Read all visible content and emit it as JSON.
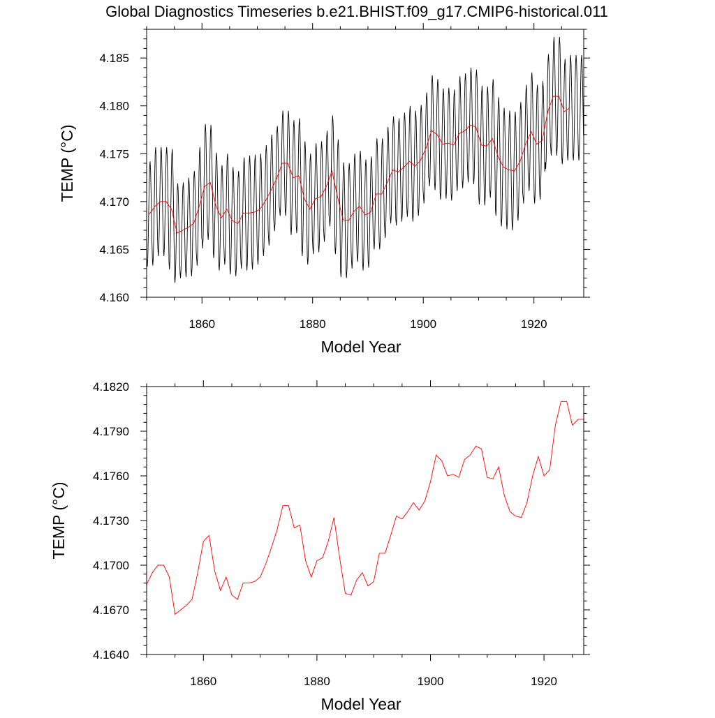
{
  "title": "Global Diagnostics Timeseries b.e21.BHIST.f09_g17.CMIP6-historical.011",
  "colors": {
    "monthly": "#000000",
    "annual": "#ff0000",
    "frame": "#000000"
  },
  "chart_data": [
    {
      "type": "line",
      "xlabel": "Model Year",
      "ylabel": "TEMP (°C)",
      "xlim": [
        1850,
        1929
      ],
      "ylim": [
        4.16,
        4.188
      ],
      "xticks": [
        1860,
        1880,
        1900,
        1920
      ],
      "xtick_labels": [
        "1860",
        "1880",
        "1900",
        "1920"
      ],
      "yticks": [
        4.16,
        4.165,
        4.17,
        4.175,
        4.18,
        4.185
      ],
      "ytick_labels": [
        "4.160",
        "4.165",
        "4.170",
        "4.175",
        "4.180",
        "4.185"
      ],
      "series": [
        {
          "color": "#000000",
          "annual_oscillation": true,
          "x_start": 1850,
          "x_end": 1929,
          "mean": [
            4.1687,
            4.1695,
            4.17,
            4.17,
            4.1692,
            4.1667,
            4.167,
            4.1673,
            4.1677,
            4.1695,
            4.1716,
            4.172,
            4.1696,
            4.1683,
            4.1692,
            4.168,
            4.1677,
            4.1688,
            4.1688,
            4.1689,
            4.1692,
            4.1701,
            4.1712,
            4.1724,
            4.174,
            4.174,
            4.1725,
            4.1727,
            4.1703,
            4.1692,
            4.1703,
            4.1705,
            4.1716,
            4.1732,
            4.1705,
            4.1681,
            4.168,
            4.169,
            4.1695,
            4.1686,
            4.1689,
            4.1708,
            4.1708,
            4.172,
            4.1733,
            4.1731,
            4.1736,
            4.1742,
            4.1737,
            4.1743,
            4.1756,
            4.1774,
            4.177,
            4.176,
            4.1761,
            4.1759,
            4.1771,
            4.1774,
            4.178,
            4.1778,
            4.1759,
            4.1758,
            4.1766,
            4.1747,
            4.1736,
            4.1733,
            4.1732,
            4.1742,
            4.176,
            4.1773,
            4.176,
            4.1764,
            4.1794,
            4.181,
            4.181,
            4.1794,
            4.1798,
            4.1798,
            4.1798
          ],
          "amplitude": [
            0.0055,
            0.0062,
            0.0057,
            0.0057,
            0.0063,
            0.0052,
            0.005,
            0.0052,
            0.0055,
            0.0062,
            0.0065,
            0.006,
            0.0055,
            0.0055,
            0.0058,
            0.0056,
            0.0055,
            0.0058,
            0.006,
            0.006,
            0.0058,
            0.0058,
            0.0058,
            0.0055,
            0.0055,
            0.0055,
            0.006,
            0.006,
            0.006,
            0.0058,
            0.0058,
            0.0058,
            0.0058,
            0.0058,
            0.006,
            0.006,
            0.006,
            0.006,
            0.0058,
            0.0058,
            0.0058,
            0.0058,
            0.0058,
            0.0058,
            0.0056,
            0.0056,
            0.0057,
            0.0058,
            0.0058,
            0.0058,
            0.0058,
            0.0058,
            0.0058,
            0.0058,
            0.0058,
            0.0058,
            0.006,
            0.006,
            0.006,
            0.006,
            0.0062,
            0.0062,
            0.0062,
            0.0062,
            0.0062,
            0.0062,
            0.0062,
            0.0062,
            0.0062,
            0.0062,
            0.0062,
            0.0062,
            0.006,
            0.0062,
            0.0062,
            0.0055,
            0.0055,
            0.0055,
            0.0055
          ]
        },
        {
          "color": "#ff0000",
          "x": [
            1850.5,
            1851.5,
            1852.5,
            1853.5,
            1854.5,
            1855.5,
            1856.5,
            1857.5,
            1858.5,
            1859.5,
            1860.5,
            1861.5,
            1862.5,
            1863.5,
            1864.5,
            1865.5,
            1866.5,
            1867.5,
            1868.5,
            1869.5,
            1870.5,
            1871.5,
            1872.5,
            1873.5,
            1874.5,
            1875.5,
            1876.5,
            1877.5,
            1878.5,
            1879.5,
            1880.5,
            1881.5,
            1882.5,
            1883.5,
            1884.5,
            1885.5,
            1886.5,
            1887.5,
            1888.5,
            1889.5,
            1890.5,
            1891.5,
            1892.5,
            1893.5,
            1894.5,
            1895.5,
            1896.5,
            1897.5,
            1898.5,
            1899.5,
            1900.5,
            1901.5,
            1902.5,
            1903.5,
            1904.5,
            1905.5,
            1906.5,
            1907.5,
            1908.5,
            1909.5,
            1910.5,
            1911.5,
            1912.5,
            1913.5,
            1914.5,
            1915.5,
            1916.5,
            1917.5,
            1918.5,
            1919.5,
            1920.5,
            1921.5,
            1922.5,
            1923.5,
            1924.5,
            1925.5,
            1926.5
          ],
          "y": [
            4.1687,
            4.1695,
            4.17,
            4.17,
            4.1692,
            4.1667,
            4.167,
            4.1673,
            4.1677,
            4.1695,
            4.1716,
            4.172,
            4.1696,
            4.1683,
            4.1692,
            4.168,
            4.1677,
            4.1688,
            4.1688,
            4.1689,
            4.1692,
            4.1701,
            4.1712,
            4.1724,
            4.174,
            4.174,
            4.1725,
            4.1727,
            4.1703,
            4.1692,
            4.1703,
            4.1705,
            4.1716,
            4.1732,
            4.1705,
            4.1681,
            4.168,
            4.169,
            4.1695,
            4.1686,
            4.1689,
            4.1708,
            4.1708,
            4.172,
            4.1733,
            4.1731,
            4.1736,
            4.1742,
            4.1737,
            4.1743,
            4.1756,
            4.1774,
            4.177,
            4.176,
            4.1761,
            4.1759,
            4.1771,
            4.1774,
            4.178,
            4.1778,
            4.1759,
            4.1758,
            4.1766,
            4.1747,
            4.1736,
            4.1733,
            4.1732,
            4.1742,
            4.176,
            4.1773,
            4.176,
            4.1764,
            4.1794,
            4.181,
            4.181,
            4.1794,
            4.1798
          ]
        }
      ]
    },
    {
      "type": "line",
      "xlabel": "Model Year",
      "ylabel": "TEMP (°C)",
      "xlim": [
        1850,
        1927
      ],
      "ylim": [
        4.164,
        4.182
      ],
      "xticks": [
        1860,
        1880,
        1900,
        1920
      ],
      "xtick_labels": [
        "1860",
        "1880",
        "1900",
        "1920"
      ],
      "yticks": [
        4.164,
        4.167,
        4.17,
        4.173,
        4.176,
        4.179,
        4.182
      ],
      "ytick_labels": [
        "4.1640",
        "4.1670",
        "4.1700",
        "4.1730",
        "4.1760",
        "4.1790",
        "4.1820"
      ],
      "series": [
        {
          "color": "#ff0000",
          "x": [
            1850,
            1851,
            1852,
            1853,
            1854,
            1855,
            1856,
            1857,
            1858,
            1859,
            1860,
            1861,
            1862,
            1863,
            1864,
            1865,
            1866,
            1867,
            1868,
            1869,
            1870,
            1871,
            1872,
            1873,
            1874,
            1875,
            1876,
            1877,
            1878,
            1879,
            1880,
            1881,
            1882,
            1883,
            1884,
            1885,
            1886,
            1887,
            1888,
            1889,
            1890,
            1891,
            1892,
            1893,
            1894,
            1895,
            1896,
            1897,
            1898,
            1899,
            1900,
            1901,
            1902,
            1903,
            1904,
            1905,
            1906,
            1907,
            1908,
            1909,
            1910,
            1911,
            1912,
            1913,
            1914,
            1915,
            1916,
            1917,
            1918,
            1919,
            1920,
            1921,
            1922,
            1923,
            1924,
            1925,
            1926,
            1927
          ],
          "y": [
            4.1687,
            4.1695,
            4.17,
            4.17,
            4.1692,
            4.1667,
            4.167,
            4.1673,
            4.1677,
            4.1695,
            4.1716,
            4.172,
            4.1696,
            4.1683,
            4.1692,
            4.168,
            4.1677,
            4.1688,
            4.1688,
            4.1689,
            4.1692,
            4.1701,
            4.1712,
            4.1724,
            4.174,
            4.174,
            4.1725,
            4.1727,
            4.1703,
            4.1692,
            4.1703,
            4.1705,
            4.1716,
            4.1732,
            4.1705,
            4.1681,
            4.168,
            4.169,
            4.1695,
            4.1686,
            4.1689,
            4.1708,
            4.1708,
            4.172,
            4.1733,
            4.1731,
            4.1736,
            4.1742,
            4.1737,
            4.1743,
            4.1756,
            4.1774,
            4.177,
            4.176,
            4.1761,
            4.1759,
            4.1771,
            4.1774,
            4.178,
            4.1778,
            4.1759,
            4.1758,
            4.1766,
            4.1747,
            4.1736,
            4.1733,
            4.1732,
            4.1742,
            4.176,
            4.1773,
            4.176,
            4.1764,
            4.1794,
            4.181,
            4.181,
            4.1794,
            4.1798,
            4.1798
          ]
        }
      ]
    }
  ]
}
